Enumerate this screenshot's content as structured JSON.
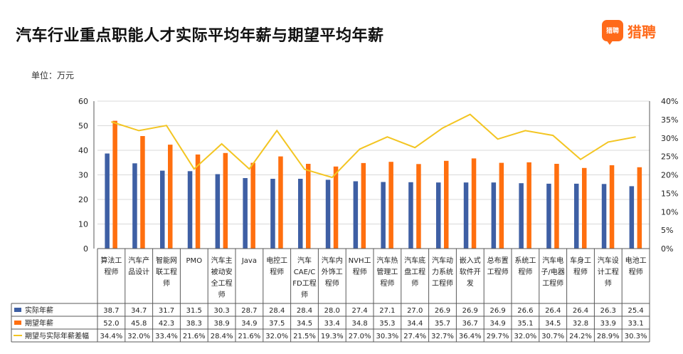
{
  "title": "汽车行业重点职能人才实际平均年薪与期望平均年薪",
  "unit": "单位：万元",
  "brand": {
    "logo_text": "猎聘",
    "name": "猎聘",
    "color": "#ff6a1a"
  },
  "colors": {
    "actual": "#3e5fa4",
    "expected": "#ff6f0f",
    "gap": "#f3c522",
    "grid": "#d9d9d9",
    "axis": "#595959"
  },
  "chart_data": {
    "type": "bar",
    "categories": [
      [
        "算法工",
        "程师"
      ],
      [
        "汽车产",
        "品设计"
      ],
      [
        "智能网",
        "联工程",
        "师"
      ],
      [
        "PMO"
      ],
      [
        "汽车主",
        "被动安",
        "全工程",
        "师"
      ],
      [
        "Java"
      ],
      [
        "电控工",
        "程师"
      ],
      [
        "汽车",
        "CAE/C",
        "FD工程",
        "师"
      ],
      [
        "汽车内",
        "外饰工",
        "程师"
      ],
      [
        "NVH工",
        "程师"
      ],
      [
        "汽车热",
        "管理工",
        "程师"
      ],
      [
        "汽车底",
        "盘工程",
        "师"
      ],
      [
        "汽车动",
        "力系统",
        "工程师"
      ],
      [
        "嵌入式",
        "软件开",
        "发"
      ],
      [
        "总布置",
        "工程师"
      ],
      [
        "系统工",
        "程师"
      ],
      [
        "汽车电",
        "子/电器",
        "工程师"
      ],
      [
        "车身工",
        "程师"
      ],
      [
        "汽车设",
        "计工程",
        "师"
      ],
      [
        "电池工",
        "程师"
      ]
    ],
    "series": [
      {
        "name": "实际年薪",
        "axis": "left",
        "values": [
          38.7,
          34.7,
          31.7,
          31.5,
          30.3,
          28.7,
          28.4,
          28.4,
          28.0,
          27.4,
          27.1,
          27.0,
          26.9,
          26.9,
          26.9,
          26.6,
          26.4,
          26.4,
          26.3,
          25.4
        ],
        "labels": [
          "38.7",
          "34.7",
          "31.7",
          "31.5",
          "30.3",
          "28.7",
          "28.4",
          "28.4",
          "28.0",
          "27.4",
          "27.1",
          "27.0",
          "26.9",
          "26.9",
          "26.9",
          "26.6",
          "26.4",
          "26.4",
          "26.3",
          "25.4"
        ]
      },
      {
        "name": "期望年薪",
        "axis": "left",
        "values": [
          52.0,
          45.8,
          42.3,
          38.3,
          38.9,
          34.9,
          37.5,
          34.5,
          33.4,
          34.8,
          35.3,
          34.4,
          35.7,
          36.7,
          34.9,
          35.1,
          34.5,
          32.8,
          33.9,
          33.1
        ],
        "labels": [
          "52.0",
          "45.8",
          "42.3",
          "38.3",
          "38.9",
          "34.9",
          "37.5",
          "34.5",
          "33.4",
          "34.8",
          "35.3",
          "34.4",
          "35.7",
          "36.7",
          "34.9",
          "35.1",
          "34.5",
          "32.8",
          "33.9",
          "33.1"
        ]
      },
      {
        "name": "期望与实际年薪差幅",
        "axis": "right",
        "type": "line",
        "values": [
          34.4,
          32.0,
          33.4,
          21.6,
          28.4,
          21.6,
          32.0,
          21.5,
          19.3,
          27.0,
          30.3,
          27.4,
          32.7,
          36.4,
          29.7,
          32.0,
          30.7,
          24.2,
          28.9,
          30.3
        ],
        "labels": [
          "34.4%",
          "32.0%",
          "33.4%",
          "21.6%",
          "28.4%",
          "21.6%",
          "32.0%",
          "21.5%",
          "19.3%",
          "27.0%",
          "30.3%",
          "27.4%",
          "32.7%",
          "36.4%",
          "29.7%",
          "32.0%",
          "30.7%",
          "24.2%",
          "28.9%",
          "30.3%"
        ]
      }
    ],
    "ylim": [
      0,
      60
    ],
    "yticks": [
      "0",
      "10",
      "20",
      "30",
      "40",
      "50",
      "60"
    ],
    "y2lim": [
      0,
      40
    ],
    "y2ticks": [
      "0%",
      "5%",
      "10%",
      "15%",
      "20%",
      "25%",
      "30%",
      "35%",
      "40%"
    ],
    "grid": true,
    "legend": "data-table-rows-at-bottom"
  }
}
